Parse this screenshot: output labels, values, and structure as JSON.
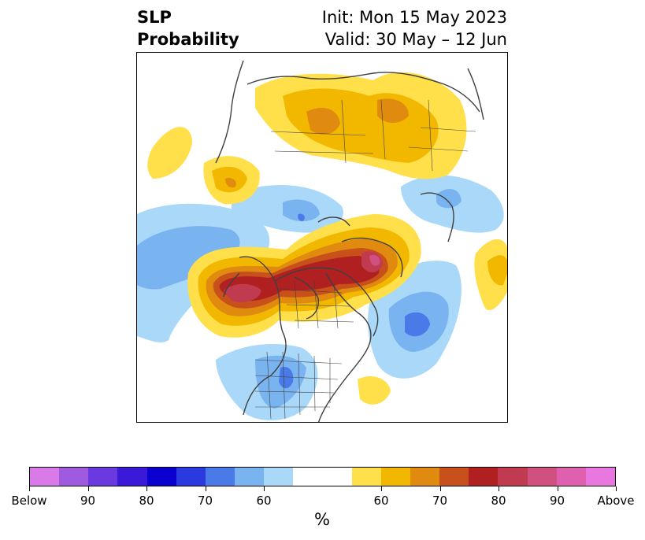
{
  "title": {
    "left_line1": "SLP",
    "left_line2": "Probability",
    "right_line1": "Init: Mon 15 May 2023",
    "right_line2": "Valid: 30 May – 12 Jun"
  },
  "colorbar": {
    "colors": [
      "#d87ae8",
      "#a05ae0",
      "#6a3ae0",
      "#3a1ad8",
      "#0a00d0",
      "#2a3ae0",
      "#4a7ae8",
      "#7ab4f0",
      "#aad8f8",
      "#ffffff",
      "#ffe04a",
      "#f2b800",
      "#e08a10",
      "#c8501a",
      "#b02020",
      "#c03a50",
      "#d05080",
      "#e060b0",
      "#e878e0"
    ],
    "tick_labels": [
      "Below",
      "90",
      "80",
      "70",
      "60",
      "60",
      "70",
      "80",
      "90",
      "Above"
    ],
    "units": "%"
  },
  "legend_categories": {
    "below": "Below",
    "above": "Above"
  }
}
